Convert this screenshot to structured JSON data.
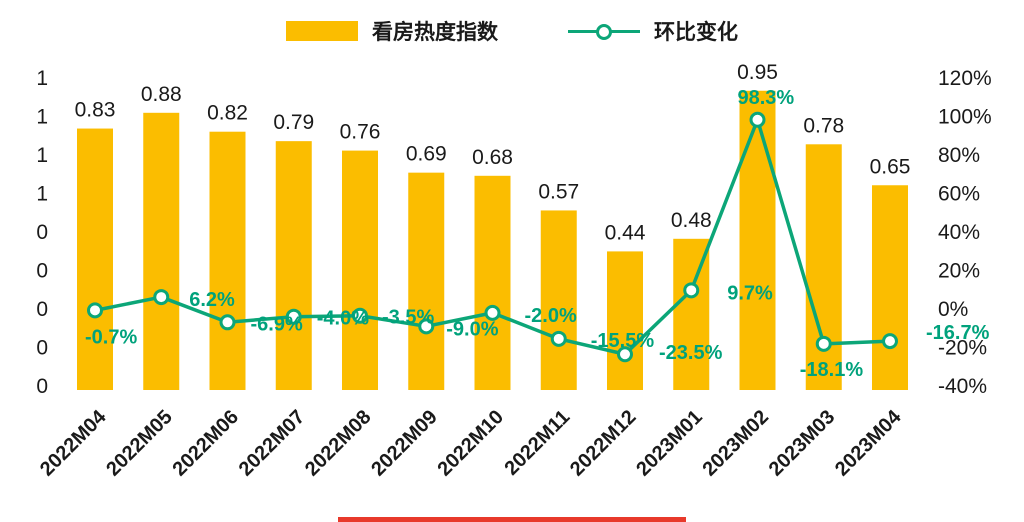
{
  "legend": {
    "bar_label": "看房热度指数",
    "line_label": "环比变化"
  },
  "colors": {
    "bar": "#FBBD00",
    "line": "#0CA678",
    "pct_label": "#00A27C",
    "axis_text": "#1a1a1a",
    "red_strip": "#E8392B"
  },
  "chart_data": {
    "type": "bar",
    "subtype": "combo-bar-line-dual-axis",
    "categories": [
      "2022M04",
      "2022M05",
      "2022M06",
      "2022M07",
      "2022M08",
      "2022M09",
      "2022M10",
      "2022M11",
      "2022M12",
      "2023M01",
      "2023M02",
      "2023M03",
      "2023M04"
    ],
    "series": [
      {
        "name": "看房热度指数",
        "type": "bar",
        "axis": "left",
        "values": [
          0.83,
          0.88,
          0.82,
          0.79,
          0.76,
          0.69,
          0.68,
          0.57,
          0.44,
          0.48,
          0.95,
          0.78,
          0.65
        ],
        "labels": [
          "0.83",
          "0.88",
          "0.82",
          "0.79",
          "0.76",
          "0.69",
          "0.68",
          "0.57",
          "0.44",
          "0.48",
          "0.95",
          "0.78",
          "0.65"
        ]
      },
      {
        "name": "环比变化",
        "type": "line",
        "axis": "right",
        "values": [
          -0.7,
          6.2,
          -6.9,
          -4.0,
          -3.5,
          -9.0,
          -2.0,
          -15.5,
          -23.5,
          9.7,
          98.3,
          -18.1,
          -16.7
        ],
        "labels": [
          "-0.7%",
          "6.2%",
          "-6.9%",
          "-4.0%",
          "-3.5%",
          "-9.0%",
          "-2.0%",
          "-15.5%",
          "-23.5%",
          "9.7%",
          "98.3%",
          "-18.1%",
          "-16.7%"
        ]
      }
    ],
    "left_axis_tick_labels": [
      "1",
      "1",
      "1",
      "1",
      "0",
      "0",
      "0",
      "0",
      "0"
    ],
    "right_axis_tick_labels": [
      "120%",
      "100%",
      "80%",
      "60%",
      "40%",
      "20%",
      "0%",
      "-20%",
      "-40%"
    ],
    "right_axis_range": [
      -40,
      120
    ],
    "grid": false,
    "legend_position": "top"
  }
}
